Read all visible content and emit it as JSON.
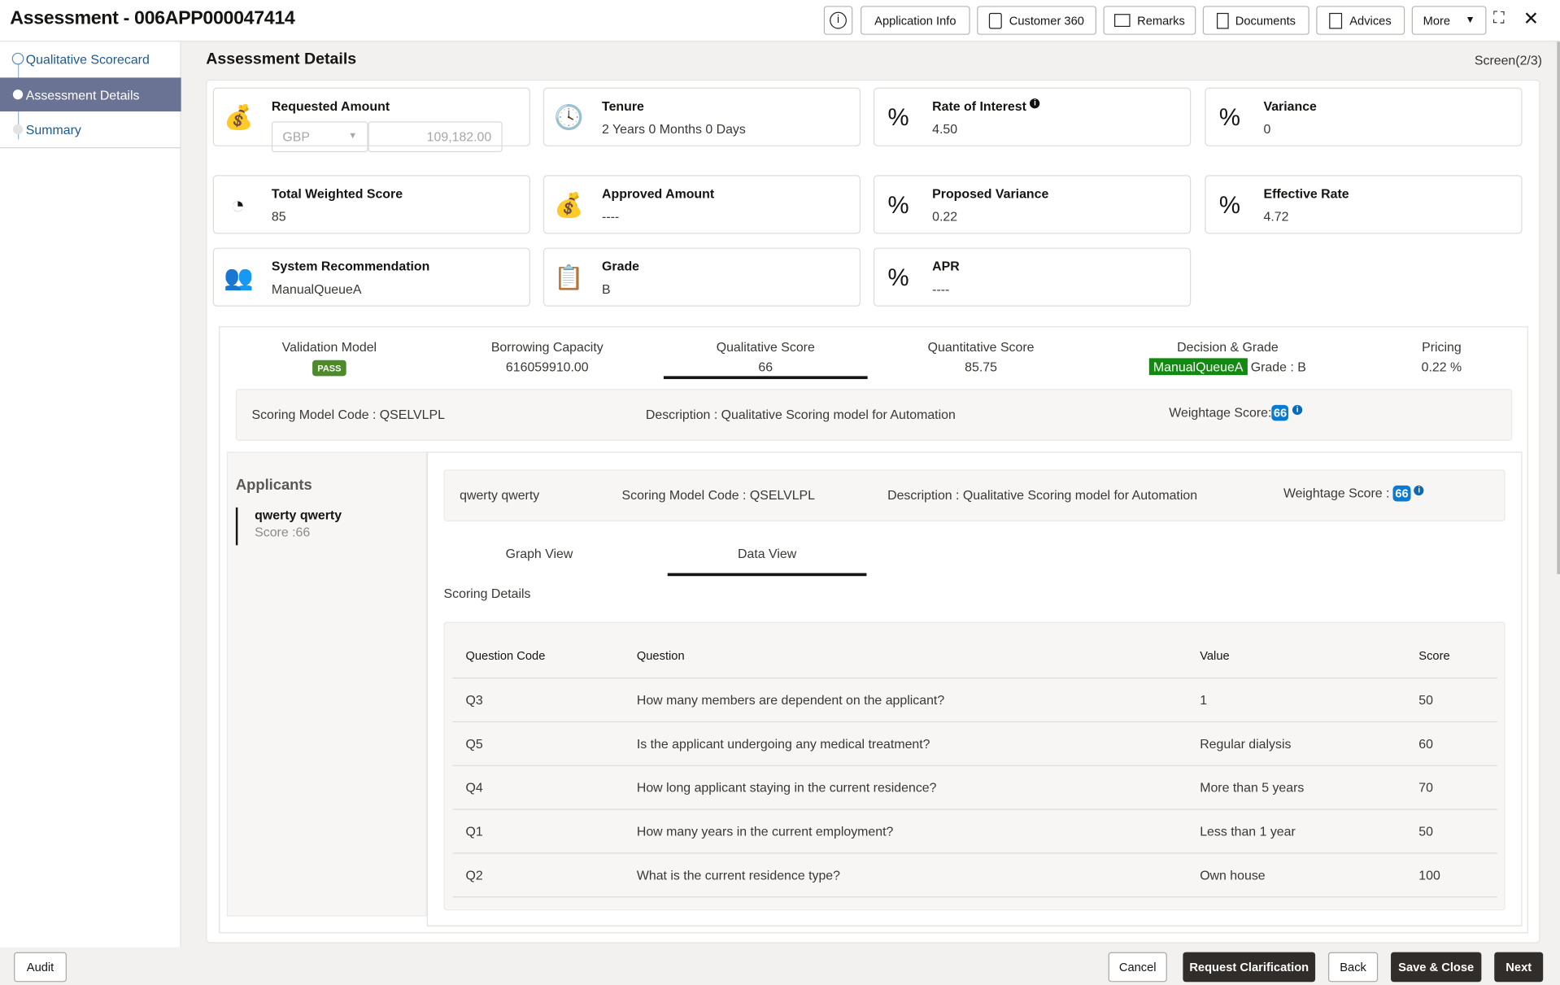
{
  "header": {
    "title": "Assessment - 006APP000047414",
    "buttons": [
      "Application Info",
      "Customer 360",
      "Remarks",
      "Documents",
      "Advices",
      "More"
    ]
  },
  "sidebar": {
    "items": [
      {
        "label": "Qualitative Scorecard",
        "state": "completed"
      },
      {
        "label": "Assessment Details",
        "state": "active"
      },
      {
        "label": "Summary",
        "state": "pending"
      }
    ]
  },
  "main": {
    "title": "Assessment Details",
    "screen": "Screen(2/3)"
  },
  "cards": [
    {
      "label": "Requested Amount",
      "currency": "GBP",
      "value": "109,182.00",
      "icon": "money-bag-icon"
    },
    {
      "label": "Tenure",
      "value": "2 Years 0 Months 0 Days",
      "icon": "clock-icon"
    },
    {
      "label": "Rate of Interest",
      "value": "4.50",
      "icon": "percent-icon"
    },
    {
      "label": "Variance",
      "value": "0",
      "icon": "percent-icon"
    },
    {
      "label": "Total Weighted Score",
      "value": "85",
      "icon": "gauge-icon"
    },
    {
      "label": "Approved Amount",
      "value": "----",
      "icon": "money-bag-icon"
    },
    {
      "label": "Proposed Variance",
      "value": "0.22",
      "icon": "percent-icon"
    },
    {
      "label": "Effective Rate",
      "value": "4.72",
      "icon": "percent-icon"
    },
    {
      "label": "System Recommendation",
      "value": "ManualQueueA",
      "icon": "users-icon"
    },
    {
      "label": "Grade",
      "value": "B",
      "icon": "clipboard-icon"
    },
    {
      "label": "APR",
      "value": "----",
      "icon": "percent-icon"
    }
  ],
  "summary_tabs": [
    {
      "label": "Validation Model",
      "value": "PASS"
    },
    {
      "label": "Borrowing Capacity",
      "value": "616059910.00"
    },
    {
      "label": "Qualitative Score",
      "value": "66",
      "active": true
    },
    {
      "label": "Quantitative Score",
      "value": "85.75"
    },
    {
      "label": "Decision & Grade",
      "value": "ManualQueueA",
      "grade": "Grade : B"
    },
    {
      "label": "Pricing",
      "value": "0.22 %"
    }
  ],
  "model": {
    "code": "Scoring Model Code : QSELVLPL",
    "description": "Description : Qualitative Scoring model for Automation",
    "weightage_label": "Weightage Score:",
    "weightage": "66"
  },
  "applicants": {
    "title": "Applicants",
    "items": [
      {
        "name": "qwerty qwerty",
        "score": "Score :66"
      }
    ]
  },
  "applicant_bar": {
    "name": "qwerty qwerty",
    "code": "Scoring Model Code : QSELVLPL",
    "description": "Description : Qualitative Scoring model for Automation",
    "weightage_label": "Weightage Score :",
    "weightage": "66"
  },
  "view_tabs": [
    {
      "label": "Graph View"
    },
    {
      "label": "Data View",
      "active": true
    }
  ],
  "scoring": {
    "title": "Scoring Details",
    "columns": [
      "Question Code",
      "Question",
      "Value",
      "Score"
    ],
    "rows": [
      [
        "Q3",
        "How many members are dependent on the applicant?",
        "1",
        "50"
      ],
      [
        "Q5",
        "Is the applicant undergoing any medical treatment?",
        "Regular dialysis",
        "60"
      ],
      [
        "Q4",
        "How long applicant staying in the current residence?",
        "More than 5 years",
        "70"
      ],
      [
        "Q1",
        "How many years in the current employment?",
        "Less than 1 year",
        "50"
      ],
      [
        "Q2",
        "What is the current residence type?",
        "Own house",
        "100"
      ]
    ]
  },
  "footer": {
    "audit": "Audit",
    "cancel": "Cancel",
    "request": "Request Clarification",
    "back": "Back",
    "save": "Save & Close",
    "next": "Next"
  },
  "colors": {
    "active_nav": "#6b7394",
    "pass": "#4e8a2a",
    "decision": "#128a12",
    "weightage": "#0b7ad1",
    "primary_button": "#312d2a"
  }
}
